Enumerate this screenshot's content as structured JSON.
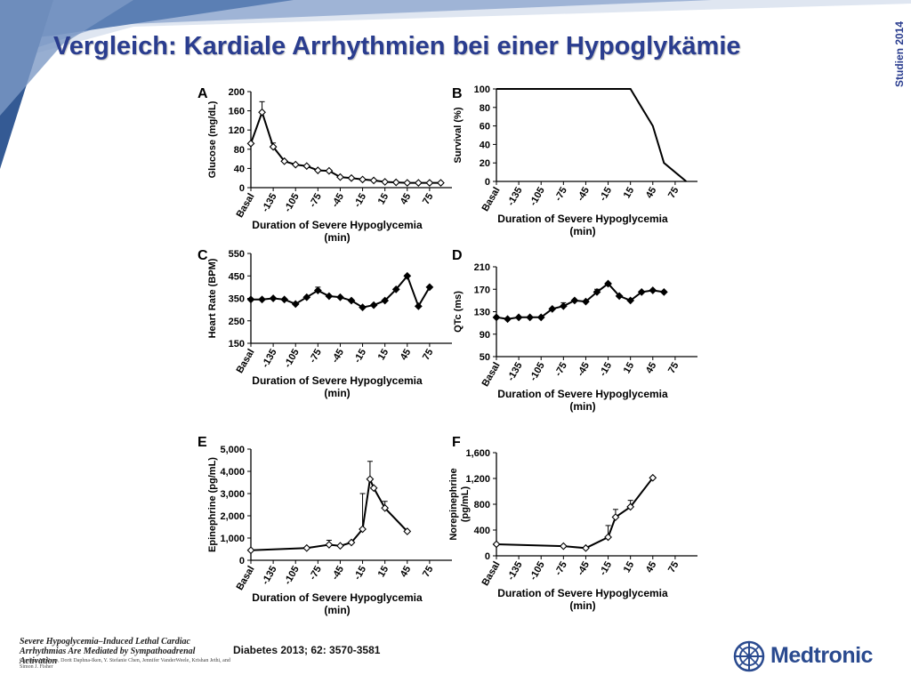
{
  "slide": {
    "title": "Vergleich: Kardiale Arrhythmien bei einer Hypoglykämie",
    "side_label": "Studien 2014",
    "paper_title": "Severe Hypoglycemia–Induced Lethal Cardiac Arrhythmias Are Mediated by Sympathoadrenal Activation",
    "paper_authors": "Candace M. Reno, Dorit Daphna-Iken, Y. Stefanie Chen, Jennifer VanderWeele, Krishan Jethi, and Simon J. Fisher",
    "citation": "Diabetes 2013; 62: 3570-3581",
    "brand_name": "Medtronic",
    "colors": {
      "title": "#2a3d8f",
      "brand": "#2a4a8f",
      "banner": "#5b7fb4",
      "line": "#000000"
    },
    "icons": {
      "logo": "medtronic-logo-icon"
    }
  },
  "chart_data": [
    {
      "type": "line",
      "panel": "A",
      "xlabel": "Duration of Severe Hypoglycemia\n(min)",
      "ylabel": "Glucose (mg/dL)",
      "ylim": [
        0,
        200
      ],
      "yticks": [
        "0",
        "40",
        "80",
        "120",
        "160",
        "200"
      ],
      "xtick_labels": [
        "Basal",
        "-135",
        "-105",
        "-75",
        "-45",
        "-15",
        "15",
        "45",
        "75"
      ],
      "x": [
        -165,
        -150,
        -135,
        -120,
        -105,
        -90,
        -75,
        -60,
        -45,
        -30,
        -15,
        0,
        15,
        30,
        45,
        60,
        75,
        90
      ],
      "y": [
        92,
        157,
        85,
        55,
        48,
        45,
        36,
        35,
        22,
        20,
        17,
        15,
        12,
        11,
        10,
        10,
        10,
        10
      ],
      "error": [
        0,
        22,
        8,
        0,
        0,
        0,
        0,
        0,
        0,
        0,
        0,
        0,
        0,
        0,
        0,
        0,
        0,
        0
      ],
      "marker": "diamond-open"
    },
    {
      "type": "line",
      "panel": "B",
      "xlabel": "Duration of Severe Hypoglycemia\n(min)",
      "ylabel": "Survival (%)",
      "ylim": [
        0,
        100
      ],
      "yticks": [
        "0",
        "20",
        "40",
        "60",
        "80",
        "100"
      ],
      "xtick_labels": [
        "Basal",
        "-135",
        "-105",
        "-75",
        "-45",
        "-15",
        "15",
        "45",
        "75"
      ],
      "x": [
        -165,
        15,
        30,
        45,
        60,
        90
      ],
      "y": [
        100,
        100,
        80,
        60,
        20,
        0
      ],
      "marker": "none"
    },
    {
      "type": "line",
      "panel": "C",
      "xlabel": "Duration of Severe Hypoglycemia\n(min)",
      "ylabel": "Heart Rate (BPM)",
      "ylim": [
        150,
        550
      ],
      "yticks": [
        "150",
        "250",
        "350",
        "450",
        "550"
      ],
      "xtick_labels": [
        "Basal",
        "-135",
        "-105",
        "-75",
        "-45",
        "-15",
        "15",
        "45",
        "75"
      ],
      "x": [
        -165,
        -150,
        -135,
        -120,
        -105,
        -90,
        -75,
        -60,
        -45,
        -30,
        -15,
        0,
        15,
        30,
        45,
        60,
        75
      ],
      "y": [
        345,
        345,
        350,
        345,
        325,
        355,
        385,
        360,
        355,
        340,
        310,
        320,
        340,
        390,
        450,
        315,
        400
      ],
      "error": [
        0,
        0,
        0,
        0,
        0,
        0,
        15,
        0,
        0,
        0,
        0,
        0,
        0,
        0,
        0,
        0,
        0
      ],
      "marker": "diamond-filled"
    },
    {
      "type": "line",
      "panel": "D",
      "xlabel": "Duration of Severe Hypoglycemia\n(min)",
      "ylabel": "QTc (ms)",
      "ylim": [
        50,
        210
      ],
      "yticks": [
        "50",
        "90",
        "130",
        "170",
        "210"
      ],
      "xtick_labels": [
        "Basal",
        "-135",
        "-105",
        "-75",
        "-45",
        "-15",
        "15",
        "45",
        "75"
      ],
      "x": [
        -165,
        -150,
        -135,
        -120,
        -105,
        -90,
        -75,
        -60,
        -45,
        -30,
        -15,
        0,
        15,
        30,
        45,
        60
      ],
      "y": [
        120,
        117,
        120,
        120,
        120,
        135,
        140,
        150,
        148,
        165,
        180,
        158,
        150,
        165,
        168,
        165
      ],
      "error": [
        0,
        0,
        0,
        0,
        0,
        0,
        6,
        0,
        0,
        5,
        0,
        0,
        0,
        0,
        0,
        0
      ],
      "marker": "diamond-filled"
    },
    {
      "type": "line",
      "panel": "E",
      "xlabel": "Duration of Severe Hypoglycemia\n(min)",
      "ylabel": "Epinephrine (pg/mL)",
      "ylim": [
        0,
        5000
      ],
      "yticks": [
        "0",
        "1,000",
        "2,000",
        "3,000",
        "4,000",
        "5,000"
      ],
      "xtick_labels": [
        "Basal",
        "-135",
        "-105",
        "-75",
        "-45",
        "-15",
        "15",
        "45",
        "75"
      ],
      "x": [
        -165,
        -90,
        -60,
        -45,
        -30,
        -15,
        -5,
        0,
        15,
        45
      ],
      "y": [
        450,
        550,
        700,
        650,
        800,
        1400,
        3650,
        3250,
        2350,
        1300
      ],
      "error": [
        0,
        0,
        200,
        0,
        0,
        1600,
        800,
        0,
        300,
        0
      ],
      "marker": "diamond-open"
    },
    {
      "type": "line",
      "panel": "F",
      "xlabel": "Duration of Severe Hypoglycemia\n(min)",
      "ylabel": "Norepinephrine\n(pg/mL)",
      "ylim": [
        0,
        1600
      ],
      "yticks": [
        "0",
        "400",
        "800",
        "1,200",
        "1,600"
      ],
      "xtick_labels": [
        "Basal",
        "-135",
        "-105",
        "-75",
        "-45",
        "-15",
        "15",
        "45",
        "75"
      ],
      "x": [
        -165,
        -75,
        -45,
        -15,
        -5,
        15,
        45
      ],
      "y": [
        180,
        150,
        120,
        290,
        600,
        760,
        1210
      ],
      "error": [
        0,
        0,
        0,
        180,
        120,
        100,
        0
      ],
      "marker": "diamond-open"
    }
  ]
}
